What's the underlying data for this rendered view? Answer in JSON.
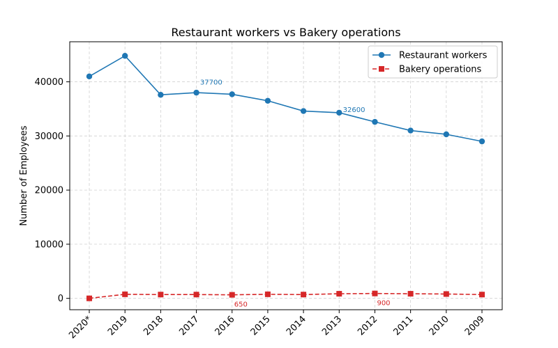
{
  "chart_data": {
    "type": "line",
    "title": "Restaurant workers vs Bakery operations",
    "xlabel": "",
    "ylabel": "Number of Employees",
    "categories": [
      "2020*",
      "2019",
      "2018",
      "2017",
      "2016",
      "2015",
      "2014",
      "2013",
      "2012",
      "2011",
      "2010",
      "2009"
    ],
    "ylim": [
      -2100,
      47400
    ],
    "yticks": [
      0,
      10000,
      20000,
      30000,
      40000
    ],
    "grid": true,
    "legend_position": "top-right",
    "series": [
      {
        "name": "Restaurant workers",
        "color": "#1f77b4",
        "marker": "circle",
        "line_style": "solid",
        "values": [
          41000,
          44800,
          37600,
          38000,
          37700,
          36500,
          34600,
          34300,
          32600,
          31000,
          30300,
          29000
        ]
      },
      {
        "name": "Bakery operations",
        "color": "#d62728",
        "marker": "square",
        "line_style": "dashed",
        "values": [
          0,
          750,
          700,
          700,
          650,
          750,
          700,
          850,
          900,
          850,
          800,
          700
        ]
      }
    ],
    "annotations": [
      {
        "series": 0,
        "category": "2016",
        "text": "37700"
      },
      {
        "series": 0,
        "category": "2012",
        "text": "32600"
      },
      {
        "series": 1,
        "category": "2016",
        "text": "650"
      },
      {
        "series": 1,
        "category": "2012",
        "text": "900"
      }
    ]
  }
}
